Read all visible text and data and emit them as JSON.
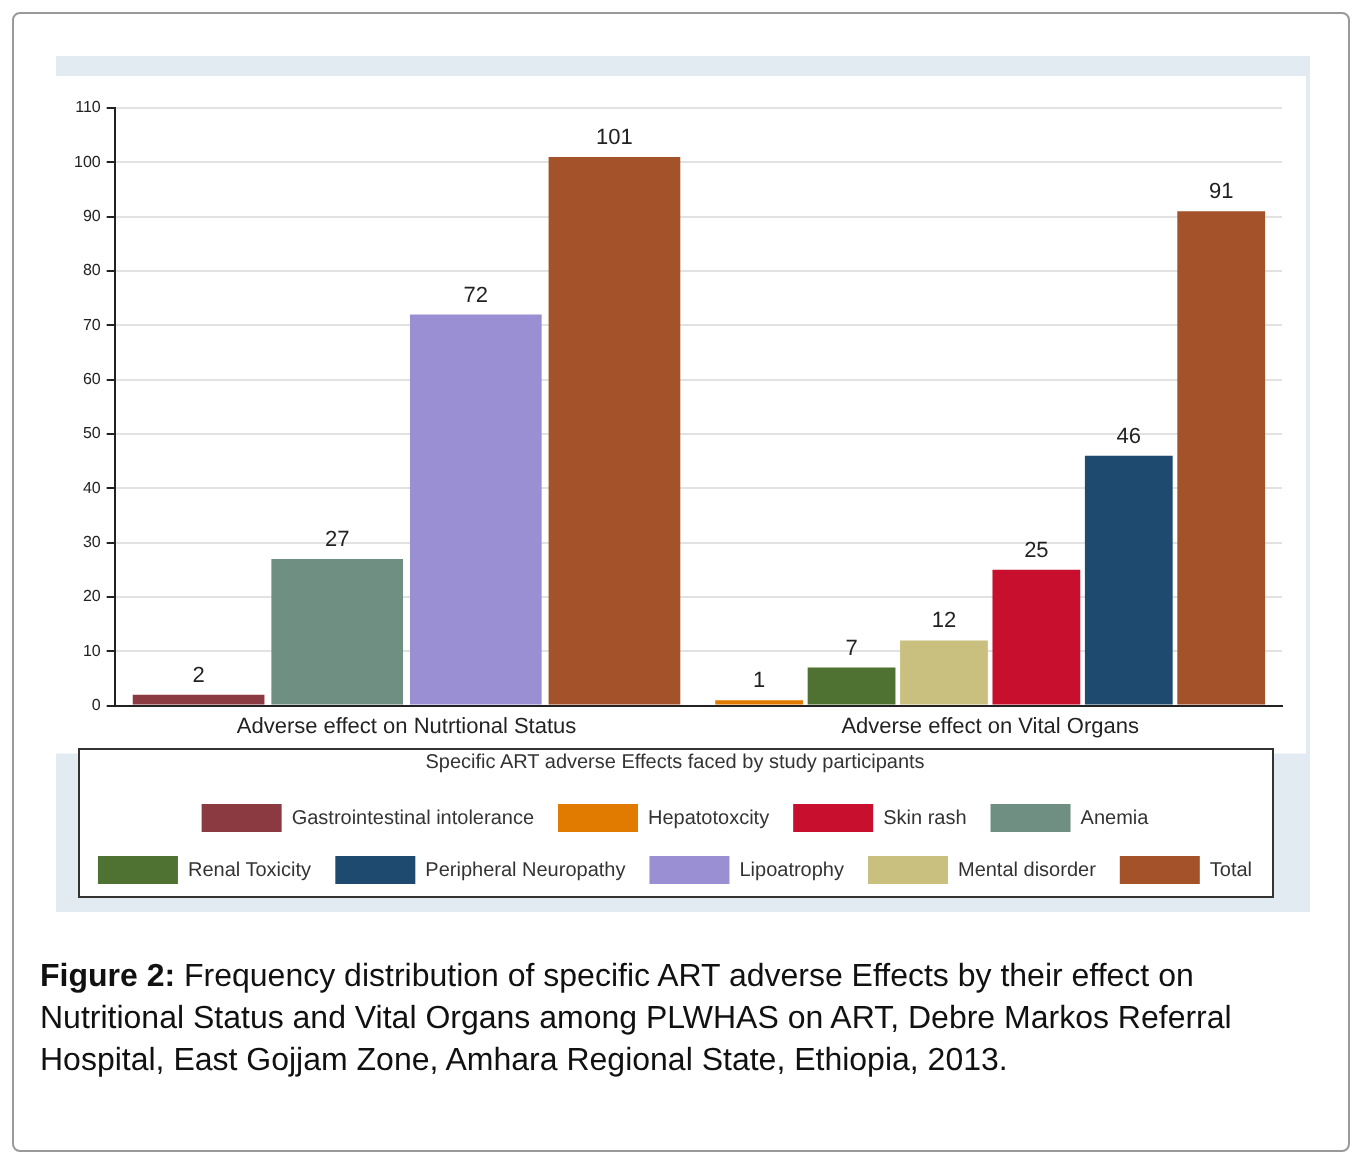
{
  "chart_data": {
    "type": "bar",
    "categories": [
      "Adverse effect on Nutrtional Status",
      "Adverse effect on Vital Organs"
    ],
    "series": [
      {
        "name": "Gastrointestinal intolerance",
        "color": "#8b3a42",
        "values": [
          2,
          null
        ]
      },
      {
        "name": "Anemia",
        "color": "#6f8f83",
        "values": [
          27,
          null
        ]
      },
      {
        "name": "Lipoatrophy",
        "color": "#9b8fd4",
        "values": [
          72,
          null
        ]
      },
      {
        "name": "Hepatotoxcity",
        "color": "#e07b00",
        "values": [
          null,
          1
        ]
      },
      {
        "name": "Renal Toxicity",
        "color": "#4f7232",
        "values": [
          null,
          7
        ]
      },
      {
        "name": "Mental disorder",
        "color": "#c9c07f",
        "values": [
          null,
          12
        ]
      },
      {
        "name": "Skin rash",
        "color": "#c8102e",
        "values": [
          null,
          25
        ]
      },
      {
        "name": "Peripheral Neuropathy",
        "color": "#1f4a70",
        "values": [
          null,
          46
        ]
      },
      {
        "name": "Total",
        "color": "#a3522a",
        "values": [
          101,
          91
        ]
      }
    ],
    "ylim": [
      0,
      110
    ],
    "yticks": [
      0,
      10,
      20,
      30,
      40,
      50,
      60,
      70,
      80,
      90,
      100,
      110
    ],
    "grid": "y",
    "data_labels": true,
    "legend": "bottom",
    "legend_title": "Specific ART adverse Effects faced by study participants",
    "annotations": [
      "Figure 2: Frequency distribution of specific ART adverse Effects by their effect on Nutritional Status and Vital Organs among PLWHAS on ART, Debre Markos Referral Hospital, East   Gojjam Zone, Amhara Regional State, Ethiopia, 2013."
    ]
  }
}
